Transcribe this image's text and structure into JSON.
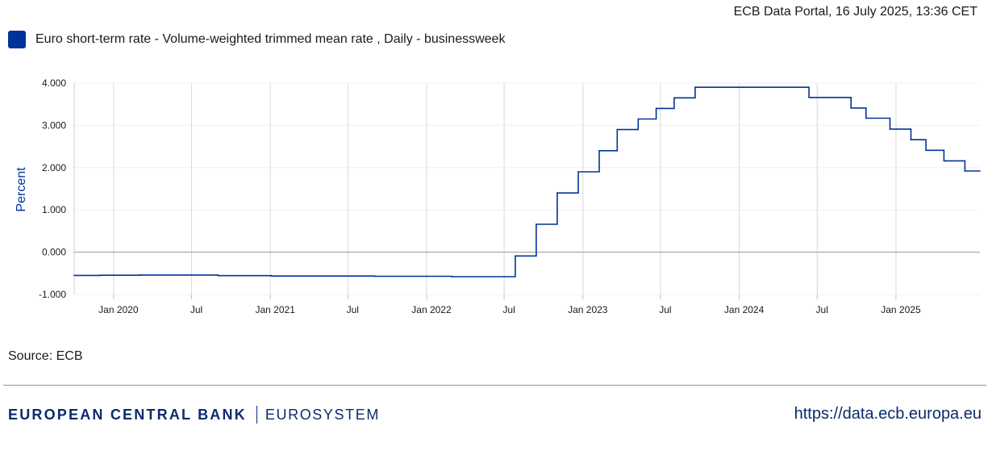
{
  "header": {
    "timestamp": "ECB Data Portal, 16 July 2025, 13:36 CET"
  },
  "legend": {
    "label": "Euro short-term rate - Volume-weighted trimmed mean rate , Daily - businessweek",
    "color": "#003399"
  },
  "source": "Source: ECB",
  "footer": {
    "bank_name": "EUROPEAN CENTRAL BANK",
    "eurosystem": "EUROSYSTEM",
    "url": "https://data.ecb.europa.eu"
  },
  "chart_data": {
    "type": "line",
    "title": "",
    "xlabel": "",
    "ylabel": "Percent",
    "ylim": [
      -1.0,
      4.0
    ],
    "yticks": [
      {
        "value": 4.0,
        "label": "4.000"
      },
      {
        "value": 3.0,
        "label": "3.000"
      },
      {
        "value": 2.0,
        "label": "2.000"
      },
      {
        "value": 1.0,
        "label": "1.000"
      },
      {
        "value": 0.0,
        "label": "0.000"
      },
      {
        "value": -1.0,
        "label": "-1.000"
      }
    ],
    "xlim": [
      "2019-10-01",
      "2025-07-16"
    ],
    "xticks": [
      {
        "date": "2020-01-01",
        "label": "Jan 2020"
      },
      {
        "date": "2020-07-01",
        "label": "Jul"
      },
      {
        "date": "2021-01-01",
        "label": "Jan 2021"
      },
      {
        "date": "2021-07-01",
        "label": "Jul"
      },
      {
        "date": "2022-01-01",
        "label": "Jan 2022"
      },
      {
        "date": "2022-07-01",
        "label": "Jul"
      },
      {
        "date": "2023-01-01",
        "label": "Jan 2023"
      },
      {
        "date": "2023-07-01",
        "label": "Jul"
      },
      {
        "date": "2024-01-01",
        "label": "Jan 2024"
      },
      {
        "date": "2024-07-01",
        "label": "Jul"
      },
      {
        "date": "2025-01-01",
        "label": "Jan 2025"
      }
    ],
    "grid": true,
    "legend_position": "top-left",
    "series": [
      {
        "name": "Euro short-term rate - Volume-weighted trimmed mean rate , Daily - businessweek",
        "color": "#003399",
        "step": true,
        "points": [
          {
            "x": "2019-10-01",
            "y": -0.549
          },
          {
            "x": "2019-12-02",
            "y": -0.545
          },
          {
            "x": "2020-03-02",
            "y": -0.54
          },
          {
            "x": "2020-09-01",
            "y": -0.555
          },
          {
            "x": "2021-01-04",
            "y": -0.565
          },
          {
            "x": "2021-09-01",
            "y": -0.57
          },
          {
            "x": "2022-03-01",
            "y": -0.58
          },
          {
            "x": "2022-07-27",
            "y": -0.09
          },
          {
            "x": "2022-09-14",
            "y": 0.66
          },
          {
            "x": "2022-11-02",
            "y": 1.4
          },
          {
            "x": "2022-12-21",
            "y": 1.9
          },
          {
            "x": "2023-02-08",
            "y": 2.4
          },
          {
            "x": "2023-03-22",
            "y": 2.9
          },
          {
            "x": "2023-05-10",
            "y": 3.15
          },
          {
            "x": "2023-06-21",
            "y": 3.4
          },
          {
            "x": "2023-08-02",
            "y": 3.65
          },
          {
            "x": "2023-09-20",
            "y": 3.9
          },
          {
            "x": "2024-06-12",
            "y": 3.66
          },
          {
            "x": "2024-09-18",
            "y": 3.41
          },
          {
            "x": "2024-10-23",
            "y": 3.17
          },
          {
            "x": "2024-12-18",
            "y": 2.91
          },
          {
            "x": "2025-02-05",
            "y": 2.66
          },
          {
            "x": "2025-03-12",
            "y": 2.41
          },
          {
            "x": "2025-04-23",
            "y": 2.16
          },
          {
            "x": "2025-06-11",
            "y": 1.92
          },
          {
            "x": "2025-07-16",
            "y": 1.92
          }
        ]
      }
    ]
  }
}
